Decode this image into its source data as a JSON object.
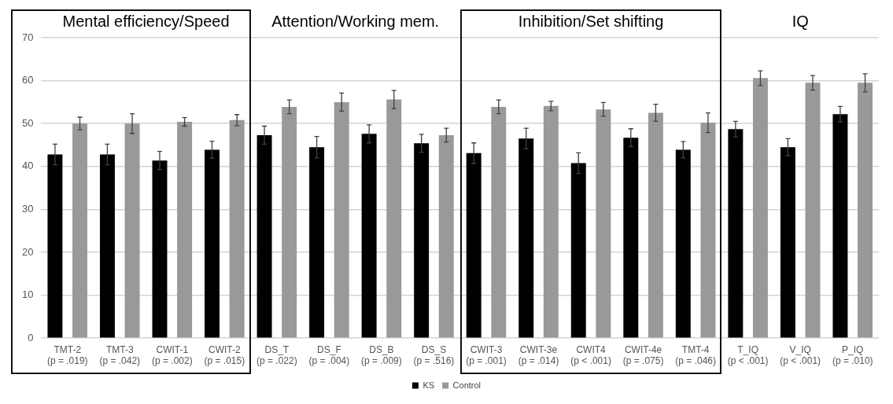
{
  "chart_data": {
    "type": "bar",
    "categories": [
      "TMT-2\n(p = .019)",
      "TMT-3\n(p = .042)",
      "CWIT-1\n(p = .002)",
      "CWIT-2\n(p = .015)",
      "DS_T\n(p = .022)",
      "DS_F\n(p = .004)",
      "DS_B\n(p = .009)",
      "DS_S\n(p = .516)",
      "CWIT-3\n(p = .001)",
      "CWIT-3e\n(p = .014)",
      "CWIT4\n(p < .001)",
      "CWIT-4e\n(p = .075)",
      "TMT-4\n(p = .046)",
      "T_IQ\n(p < .001)",
      "V_IQ\n(p < .001)",
      "P_IQ\n(p = .010)"
    ],
    "series": [
      {
        "name": "KS",
        "color": "#000000",
        "values": [
          42.8,
          42.8,
          41.4,
          43.9,
          47.3,
          44.5,
          47.6,
          45.4,
          43.1,
          46.5,
          40.8,
          46.7,
          43.9,
          48.7,
          44.5,
          52.2
        ],
        "errors": [
          2.4,
          2.4,
          2.1,
          2.0,
          2.1,
          2.5,
          2.1,
          2.1,
          2.4,
          2.4,
          2.4,
          2.1,
          1.9,
          1.8,
          2.0,
          1.8
        ]
      },
      {
        "name": "Control",
        "color": "#999999",
        "values": [
          50.0,
          50.0,
          50.4,
          50.8,
          53.9,
          55.0,
          55.6,
          47.3,
          53.9,
          54.1,
          53.3,
          52.5,
          50.2,
          60.6,
          59.5,
          59.5
        ],
        "errors": [
          1.5,
          2.3,
          1.0,
          1.3,
          1.6,
          2.1,
          2.1,
          1.6,
          1.6,
          1.1,
          1.6,
          2.0,
          2.3,
          1.7,
          1.7,
          2.1
        ]
      }
    ],
    "annotations": [
      "Mental efficiency/Speed",
      "Attention/Working mem.",
      "Inhibition/Set shifting",
      "IQ"
    ],
    "ylim": [
      0,
      70
    ],
    "yticks": [
      0,
      10,
      20,
      30,
      40,
      50,
      60,
      70
    ],
    "grid": "y",
    "legend": "bottom"
  }
}
